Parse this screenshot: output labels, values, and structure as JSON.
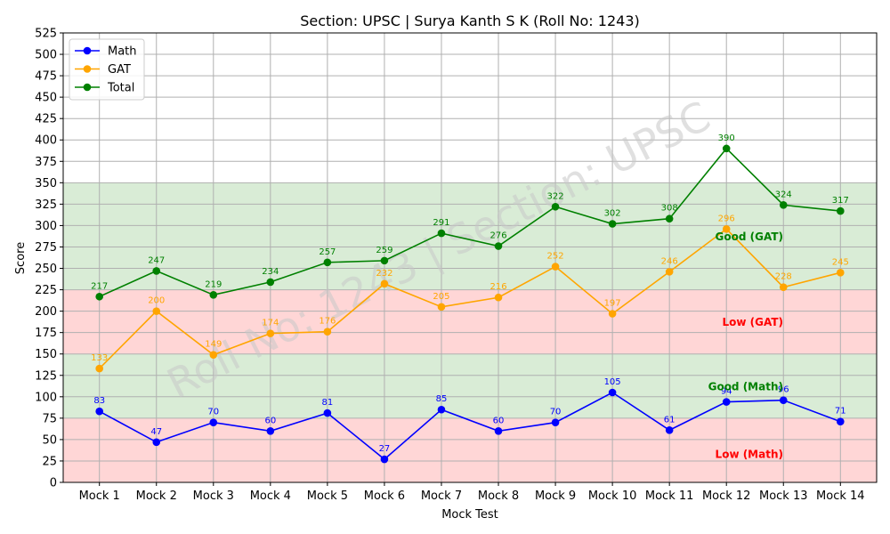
{
  "chart_data": {
    "type": "line",
    "title": "Section: UPSC | Surya Kanth S K (Roll No: 1243)",
    "xlabel": "Mock Test",
    "ylabel": "Score",
    "ylim": [
      0,
      525
    ],
    "ytick_step": 25,
    "grid": true,
    "legend_position": "top-left",
    "watermark": "Roll No: 1243 | Section: UPSC",
    "categories": [
      "Mock 1",
      "Mock 2",
      "Mock 3",
      "Mock 4",
      "Mock 5",
      "Mock 6",
      "Mock 7",
      "Mock 8",
      "Mock 9",
      "Mock 10",
      "Mock 11",
      "Mock 12",
      "Mock 13",
      "Mock 14"
    ],
    "series": [
      {
        "name": "Math",
        "color": "#0000ff",
        "values": [
          83,
          47,
          70,
          60,
          81,
          27,
          85,
          60,
          70,
          105,
          61,
          94,
          96,
          71
        ]
      },
      {
        "name": "GAT",
        "color": "#ffa500",
        "values": [
          133,
          200,
          149,
          174,
          176,
          232,
          205,
          216,
          252,
          197,
          246,
          296,
          228,
          245
        ]
      },
      {
        "name": "Total",
        "color": "#008000",
        "values": [
          217,
          247,
          219,
          234,
          257,
          259,
          291,
          276,
          322,
          302,
          308,
          390,
          324,
          317
        ]
      }
    ],
    "bands": [
      {
        "label": "Low (Math)",
        "from": 0,
        "to": 75,
        "fill": "#ffd6d6",
        "text_color": "#ff0000",
        "label_value": 33
      },
      {
        "label": "Good (Math)",
        "from": 75,
        "to": 150,
        "fill": "#d9ecd6",
        "text_color": "#008000",
        "label_value": 112
      },
      {
        "label": "Low (GAT)",
        "from": 150,
        "to": 225,
        "fill": "#ffd6d6",
        "text_color": "#ff0000",
        "label_value": 187
      },
      {
        "label": "Good (GAT)",
        "from": 225,
        "to": 350,
        "fill": "#d9ecd6",
        "text_color": "#008000",
        "label_value": 287
      }
    ]
  }
}
